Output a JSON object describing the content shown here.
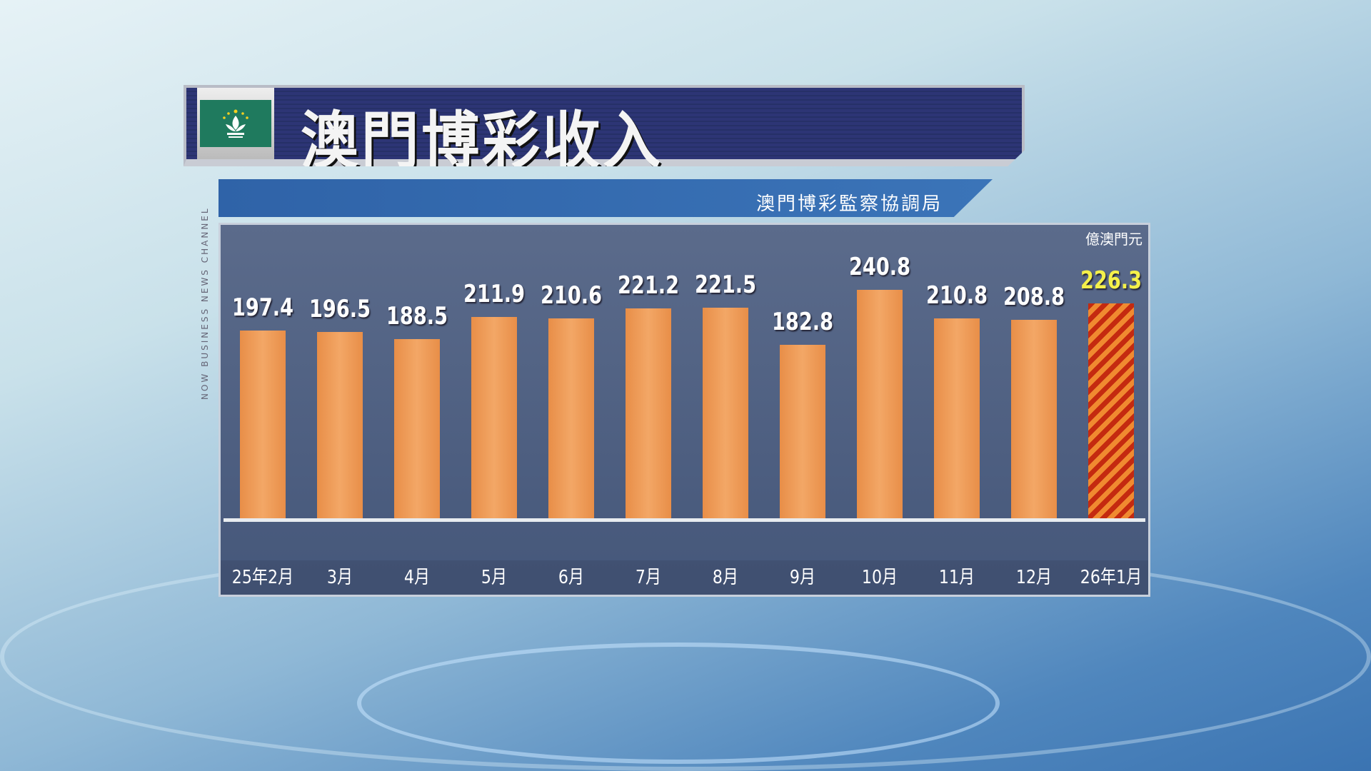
{
  "header": {
    "title": "澳門博彩收入",
    "source": "澳門博彩監察協調局",
    "flag_icon": "macau-flag-icon"
  },
  "brand": "NOW BUSINESS NEWS CHANNEL",
  "chart_data": {
    "type": "bar",
    "title": "澳門博彩收入",
    "unit": "億澳門元",
    "categories": [
      "25年2月",
      "3月",
      "4月",
      "5月",
      "6月",
      "7月",
      "8月",
      "9月",
      "10月",
      "11月",
      "12月",
      "26年1月"
    ],
    "values": [
      197.4,
      196.5,
      188.5,
      211.9,
      210.6,
      221.2,
      221.5,
      182.8,
      240.8,
      210.8,
      208.8,
      226.3
    ],
    "labels": [
      "197.4",
      "196.5",
      "188.5",
      "211.9",
      "210.6",
      "221.2",
      "221.5",
      "182.8",
      "240.8",
      "210.8",
      "208.8",
      "226.3"
    ],
    "highlight_index": 11,
    "colors": {
      "bar": "#f0a060",
      "highlight": "#c42a10",
      "highlight_label": "#f4f04a"
    },
    "ylim": [
      0,
      260
    ]
  }
}
